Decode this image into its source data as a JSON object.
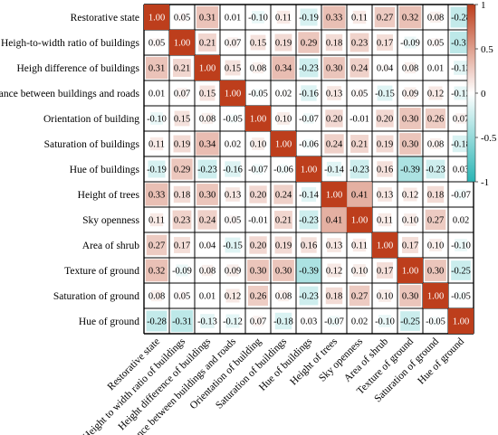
{
  "chart_data": {
    "type": "heatmap",
    "title": "",
    "xlabel": "",
    "ylabel": "",
    "row_labels": [
      "Restorative state",
      "Heigh-to-width ratio of buildings",
      "Heigh difference of buildings",
      "Distance between buildings and roads",
      "Orientation of building",
      "Saturation of  buildings",
      "Hue of buildings",
      "Height of trees",
      "Sky openness",
      "Area of shrub",
      "Texture of ground",
      "Saturation of  ground",
      "Hue of ground"
    ],
    "col_labels": [
      "Restorative state",
      "Height to width ratio of buildings",
      "Height difference of buildings",
      "Distance between buildings and roads",
      "Orientation of building",
      "Saturation of  buildings",
      "Hue of buildings",
      "Height of trees",
      "Sky openness",
      "Area of shrub",
      "Texture of ground",
      "Saturation of  ground",
      "Hue of ground"
    ],
    "values": [
      [
        1.0,
        0.05,
        0.31,
        0.01,
        -0.1,
        0.11,
        -0.19,
        0.33,
        0.11,
        0.27,
        0.32,
        0.08,
        -0.28
      ],
      [
        0.05,
        1.0,
        0.21,
        0.07,
        0.15,
        0.19,
        0.29,
        0.18,
        0.23,
        0.17,
        -0.09,
        0.05,
        -0.31
      ],
      [
        0.31,
        0.21,
        1.0,
        0.15,
        0.08,
        0.34,
        -0.23,
        0.3,
        0.24,
        0.04,
        0.08,
        0.01,
        -0.13
      ],
      [
        0.01,
        0.07,
        0.15,
        1.0,
        -0.05,
        0.02,
        -0.16,
        0.13,
        0.05,
        -0.15,
        0.09,
        0.12,
        -0.12
      ],
      [
        -0.1,
        0.15,
        0.08,
        -0.05,
        1.0,
        0.1,
        -0.07,
        0.2,
        -0.01,
        0.2,
        0.3,
        0.26,
        0.07
      ],
      [
        0.11,
        0.19,
        0.34,
        0.02,
        0.1,
        1.0,
        -0.06,
        0.24,
        0.21,
        0.19,
        0.3,
        0.08,
        -0.18
      ],
      [
        -0.19,
        0.29,
        -0.23,
        -0.16,
        -0.07,
        -0.06,
        1.0,
        -0.14,
        -0.23,
        0.16,
        -0.39,
        -0.23,
        0.03
      ],
      [
        0.33,
        0.18,
        0.3,
        0.13,
        0.2,
        0.24,
        -0.14,
        1.0,
        0.41,
        0.13,
        0.12,
        0.18,
        -0.07
      ],
      [
        0.11,
        0.23,
        0.24,
        0.05,
        -0.01,
        0.21,
        -0.23,
        0.41,
        1.0,
        0.11,
        0.1,
        0.27,
        0.02
      ],
      [
        0.27,
        0.17,
        0.04,
        -0.15,
        0.2,
        0.19,
        0.16,
        0.13,
        0.11,
        1.0,
        0.17,
        0.1,
        -0.1
      ],
      [
        0.32,
        -0.09,
        0.08,
        0.09,
        0.3,
        0.3,
        -0.39,
        0.12,
        0.1,
        0.17,
        1.0,
        0.3,
        -0.25
      ],
      [
        0.08,
        0.05,
        0.01,
        0.12,
        0.26,
        0.08,
        -0.23,
        0.18,
        0.27,
        0.1,
        0.3,
        1.0,
        -0.05
      ],
      [
        -0.28,
        -0.31,
        -0.13,
        -0.12,
        0.07,
        -0.18,
        0.03,
        -0.07,
        0.02,
        -0.1,
        -0.25,
        -0.05,
        1.0
      ]
    ],
    "value_range": [
      -1,
      1
    ],
    "colorbar_ticks": [
      1,
      0.5,
      0,
      -0.5,
      -1
    ],
    "colorbar_labels": [
      "1",
      "0.5",
      "0",
      "-0.5",
      "-1"
    ],
    "colors": {
      "positive": "#bd3e1c",
      "neutral": "#ffffff",
      "negative": "#2ab5b5",
      "grid": "#000000",
      "text": "#000000",
      "diagonal_text": "#ffffff"
    },
    "legend": "right",
    "grid": true
  }
}
